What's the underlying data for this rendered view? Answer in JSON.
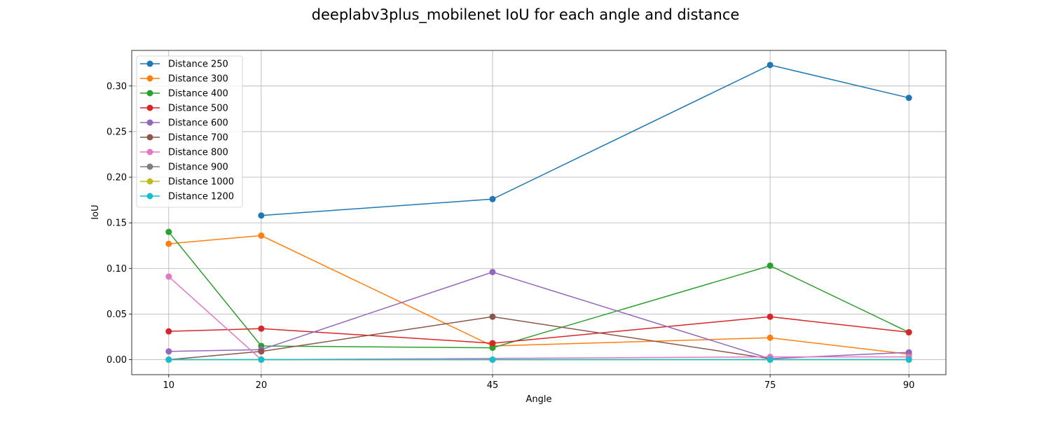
{
  "chart_data": {
    "type": "line",
    "title": "deeplabv3plus_mobilenet IoU for each angle and distance",
    "xlabel": "Angle",
    "ylabel": "IoU",
    "x": [
      10,
      20,
      45,
      75,
      90
    ],
    "xlim": [
      6,
      94
    ],
    "ylim": [
      -0.0165,
      0.339
    ],
    "xticks": [
      10,
      20,
      45,
      75,
      90
    ],
    "yticks": [
      0.0,
      0.05,
      0.1,
      0.15,
      0.2,
      0.25,
      0.3
    ],
    "ytick_labels": [
      "0.00",
      "0.05",
      "0.10",
      "0.15",
      "0.20",
      "0.25",
      "0.30"
    ],
    "grid": true,
    "legend_position": "top-left",
    "series": [
      {
        "name": "Distance 250",
        "color": "#1f77b4",
        "values": [
          null,
          0.158,
          0.176,
          0.323,
          0.287
        ]
      },
      {
        "name": "Distance 300",
        "color": "#ff7f0e",
        "values": [
          0.127,
          0.136,
          0.015,
          0.024,
          0.006
        ]
      },
      {
        "name": "Distance 400",
        "color": "#2ca02c",
        "values": [
          0.14,
          0.015,
          0.013,
          0.103,
          0.03
        ]
      },
      {
        "name": "Distance 500",
        "color": "#d62728",
        "values": [
          0.031,
          0.034,
          0.018,
          0.047,
          0.03
        ]
      },
      {
        "name": "Distance 600",
        "color": "#9467bd",
        "values": [
          0.009,
          0.011,
          0.096,
          0.001,
          0.008
        ]
      },
      {
        "name": "Distance 700",
        "color": "#8c564b",
        "values": [
          0.0,
          0.009,
          0.047,
          0.001,
          null
        ]
      },
      {
        "name": "Distance 800",
        "color": "#e377c2",
        "values": [
          0.091,
          0.0,
          null,
          0.003,
          0.003
        ]
      },
      {
        "name": "Distance 900",
        "color": "#7f7f7f",
        "values": [
          0.0,
          0.0,
          0.0,
          0.0,
          0.0
        ]
      },
      {
        "name": "Distance 1000",
        "color": "#bcbd22",
        "values": [
          0.0,
          0.0,
          0.0,
          0.0,
          0.0
        ]
      },
      {
        "name": "Distance 1200",
        "color": "#17becf",
        "values": [
          0.0,
          0.0,
          0.0,
          0.0,
          0.0
        ]
      }
    ]
  }
}
